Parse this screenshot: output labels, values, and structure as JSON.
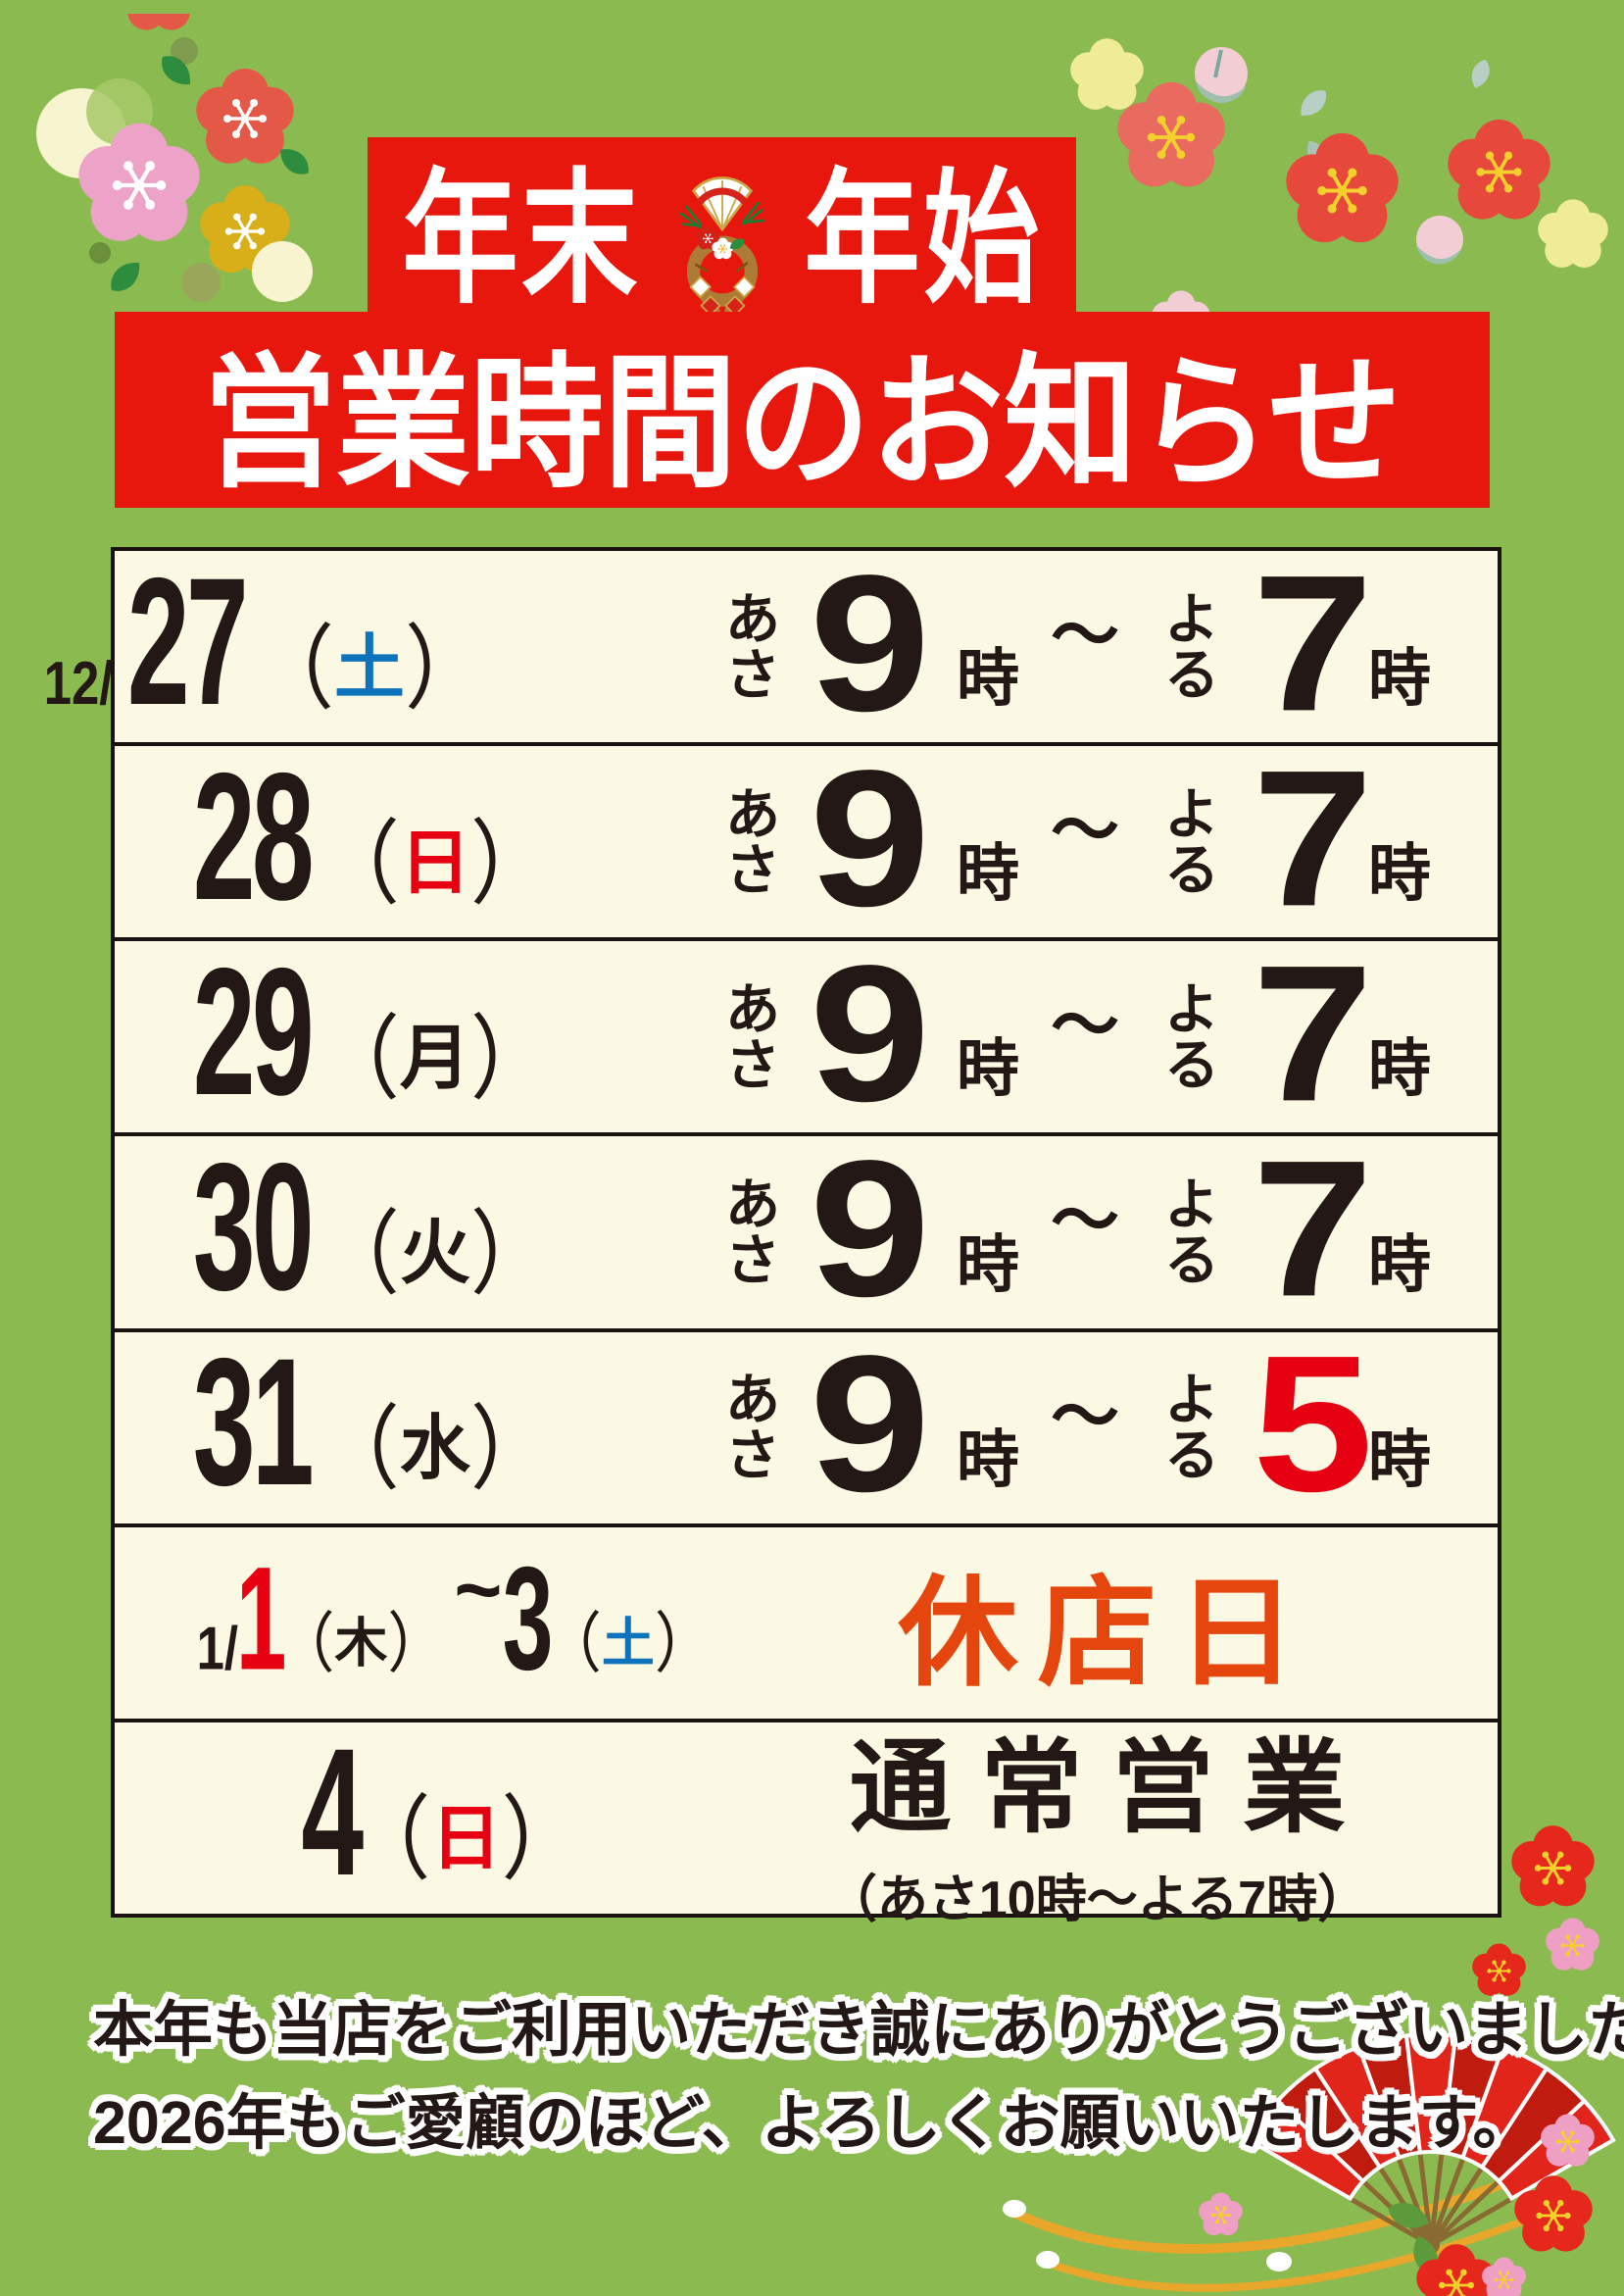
{
  "palette": {
    "background_green": "#8bba50",
    "banner_red": "#e7170e",
    "panel_cream": "#fbf9e4",
    "ink_black": "#231815",
    "saturday_blue": "#0e73bc",
    "sunday_red": "#e60012",
    "closed_vermilion": "#e5460e",
    "table_border": "#191210"
  },
  "banner": {
    "title_left": "年末",
    "title_right": "年始",
    "ornament_icon": "shimekazari-new-year-ornament-icon",
    "subtitle": "営業時間のお知らせ"
  },
  "table": {
    "rows": [
      {
        "type": "hours",
        "date_prefix": "12/",
        "day": "27",
        "weekday": "土",
        "weekday_color": "#0e73bc",
        "open_kana": "あさ",
        "open_num": "9",
        "open_suffix": "時",
        "tilde": "～",
        "close_kana": "よる",
        "close_num": "7",
        "close_suffix": "時",
        "close_num_color": "#231815"
      },
      {
        "type": "hours",
        "day": "28",
        "weekday": "日",
        "weekday_color": "#e60012",
        "open_kana": "あさ",
        "open_num": "9",
        "open_suffix": "時",
        "tilde": "～",
        "close_kana": "よる",
        "close_num": "7",
        "close_suffix": "時",
        "close_num_color": "#231815"
      },
      {
        "type": "hours",
        "day": "29",
        "weekday": "月",
        "weekday_color": "#231815",
        "open_kana": "あさ",
        "open_num": "9",
        "open_suffix": "時",
        "tilde": "～",
        "close_kana": "よる",
        "close_num": "7",
        "close_suffix": "時",
        "close_num_color": "#231815"
      },
      {
        "type": "hours",
        "day": "30",
        "weekday": "火",
        "weekday_color": "#231815",
        "open_kana": "あさ",
        "open_num": "9",
        "open_suffix": "時",
        "tilde": "～",
        "close_kana": "よる",
        "close_num": "7",
        "close_suffix": "時",
        "close_num_color": "#231815"
      },
      {
        "type": "hours",
        "day": "31",
        "weekday": "水",
        "weekday_color": "#231815",
        "open_kana": "あさ",
        "open_num": "9",
        "open_suffix": "時",
        "tilde": "～",
        "close_kana": "よる",
        "close_num": "5",
        "close_suffix": "時",
        "close_num_color": "#e60012"
      },
      {
        "type": "closed",
        "date_prefix": "1/",
        "day_start": "1",
        "day_start_color": "#e60012",
        "weekday_start": "木",
        "weekday_start_color": "#231815",
        "range_tilde": "~",
        "day_end": "3",
        "weekday_end": "土",
        "weekday_end_color": "#0e73bc",
        "label": "休店日",
        "label_color": "#e5460e"
      },
      {
        "type": "normal",
        "day": "4",
        "weekday": "日",
        "weekday_color": "#e60012",
        "label": "通常営業",
        "sublabel": "（あさ10時～よる7時）"
      }
    ]
  },
  "footer": {
    "line1": "本年も当店をご利用いただき誠にありがとうございました。",
    "line2": "2026年もご愛顧のほど、よろしくお願いいたします。"
  },
  "decor": {
    "top_left": "plum-blossoms",
    "top_right": "plum-blossoms",
    "bottom_right": "folding-fan-with-plums",
    "banner_center": "shimekazari"
  }
}
